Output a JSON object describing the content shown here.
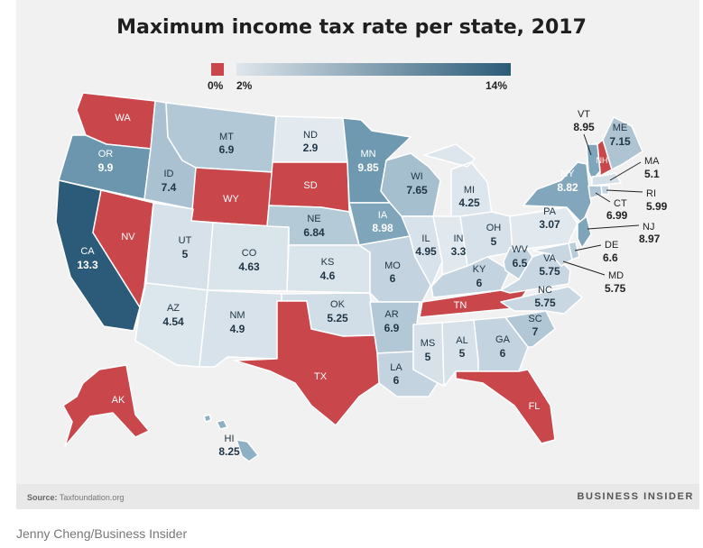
{
  "title": "Maximum income tax rate per state, 2017",
  "legend": {
    "zero": "0%",
    "low": "2%",
    "high": "14%",
    "zero_color": "#c9474b",
    "low_color": "#dfe6ec",
    "high_color": "#2b5b78"
  },
  "states": [
    {
      "abbr": "WA",
      "value": "",
      "color": "#c9474b"
    },
    {
      "abbr": "OR",
      "value": "9.9",
      "color": "#6b96ae"
    },
    {
      "abbr": "CA",
      "value": "13.3",
      "color": "#2b5b78"
    },
    {
      "abbr": "NV",
      "value": "",
      "color": "#c9474b"
    },
    {
      "abbr": "ID",
      "value": "7.4",
      "color": "#a9c1d0"
    },
    {
      "abbr": "MT",
      "value": "6.9",
      "color": "#b3c8d6"
    },
    {
      "abbr": "WY",
      "value": "",
      "color": "#c9474b"
    },
    {
      "abbr": "UT",
      "value": "5",
      "color": "#d6e1e9"
    },
    {
      "abbr": "AZ",
      "value": "4.54",
      "color": "#dce6ed"
    },
    {
      "abbr": "CO",
      "value": "4.63",
      "color": "#dae4eb"
    },
    {
      "abbr": "NM",
      "value": "4.9",
      "color": "#d8e2ea"
    },
    {
      "abbr": "ND",
      "value": "2.9",
      "color": "#e3eaef"
    },
    {
      "abbr": "SD",
      "value": "",
      "color": "#c9474b"
    },
    {
      "abbr": "NE",
      "value": "6.84",
      "color": "#b5cad7"
    },
    {
      "abbr": "KS",
      "value": "4.6",
      "color": "#dae4eb"
    },
    {
      "abbr": "OK",
      "value": "5.25",
      "color": "#d2dee7"
    },
    {
      "abbr": "TX",
      "value": "",
      "color": "#c9474b"
    },
    {
      "abbr": "MN",
      "value": "9.85",
      "color": "#6f99b1"
    },
    {
      "abbr": "IA",
      "value": "8.98",
      "color": "#7fa5bb"
    },
    {
      "abbr": "MO",
      "value": "6",
      "color": "#c3d3df"
    },
    {
      "abbr": "AR",
      "value": "6.9",
      "color": "#b3c8d6"
    },
    {
      "abbr": "LA",
      "value": "6",
      "color": "#c3d3df"
    },
    {
      "abbr": "WI",
      "value": "7.65",
      "color": "#a6bfcf"
    },
    {
      "abbr": "IL",
      "value": "4.95",
      "color": "#d8e2ea"
    },
    {
      "abbr": "MS",
      "value": "5",
      "color": "#d6e1e9"
    },
    {
      "abbr": "MI",
      "value": "4.25",
      "color": "#dde6ed"
    },
    {
      "abbr": "IN",
      "value": "3.3",
      "color": "#e1e9ee"
    },
    {
      "abbr": "KY",
      "value": "6",
      "color": "#c3d3df"
    },
    {
      "abbr": "TN",
      "value": "",
      "color": "#c9474b"
    },
    {
      "abbr": "AL",
      "value": "5",
      "color": "#d6e1e9"
    },
    {
      "abbr": "OH",
      "value": "5",
      "color": "#d6e1e9"
    },
    {
      "abbr": "WV",
      "value": "6.5",
      "color": "#bbcedb"
    },
    {
      "abbr": "GA",
      "value": "6",
      "color": "#c3d3df"
    },
    {
      "abbr": "FL",
      "value": "",
      "color": "#c9474b"
    },
    {
      "abbr": "SC",
      "value": "7",
      "color": "#b1c7d5"
    },
    {
      "abbr": "NC",
      "value": "5.75",
      "color": "#c8d7e2"
    },
    {
      "abbr": "VA",
      "value": "5.75",
      "color": "#c8d7e2"
    },
    {
      "abbr": "PA",
      "value": "3.07",
      "color": "#e2e9ee"
    },
    {
      "abbr": "NY",
      "value": "8.82",
      "color": "#82a7bd"
    },
    {
      "abbr": "VT",
      "value": "8.95",
      "color": "#80a6bc"
    },
    {
      "abbr": "NH",
      "value": "",
      "color": "#c9474b"
    },
    {
      "abbr": "ME",
      "value": "7.15",
      "color": "#aec4d3"
    },
    {
      "abbr": "MA",
      "value": "5.1",
      "color": "#d4dfe8"
    },
    {
      "abbr": "RI",
      "value": "5.99",
      "color": "#c4d4e0"
    },
    {
      "abbr": "CT",
      "value": "6.99",
      "color": "#b1c6d5"
    },
    {
      "abbr": "NJ",
      "value": "8.97",
      "color": "#7fa5bb"
    },
    {
      "abbr": "DE",
      "value": "6.6",
      "color": "#bacddb"
    },
    {
      "abbr": "MD",
      "value": "5.75",
      "color": "#c8d7e2"
    },
    {
      "abbr": "AK",
      "value": "",
      "color": "#c9474b"
    },
    {
      "abbr": "HI",
      "value": "8.25",
      "color": "#8db0c4"
    }
  ],
  "source_label": "Source:",
  "source_text": "Taxfoundation.org",
  "brand": "BUSINESS INSIDER",
  "caption": "Jenny Cheng/Business Insider"
}
